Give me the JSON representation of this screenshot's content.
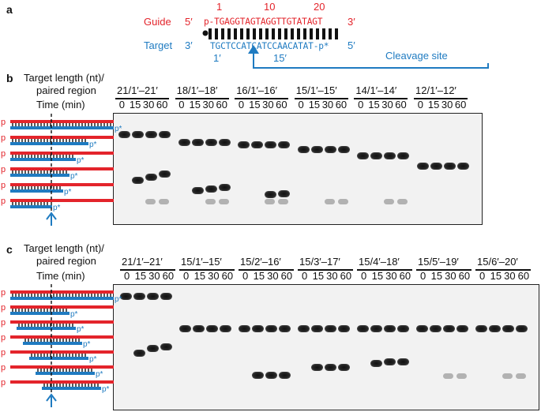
{
  "panel_a": {
    "letter": "a",
    "guide_label": "Guide",
    "target_label": "Target",
    "guide_5": "5′",
    "guide_3": "3′",
    "guide_seq": "p-TGAGGTAGTAGGTTGTATAGT",
    "target_3": "3′",
    "target_5": "5′",
    "target_seq": "TGCTCCATCATCCAACATAT-p*",
    "guide_pos_1": "1",
    "guide_pos_10": "10",
    "guide_pos_20": "20",
    "target_pos_1": "1′",
    "target_pos_15": "15′",
    "cleavage_label": "Cleavage site",
    "colors": {
      "guide": "#e3242b",
      "target": "#1f7bc1"
    }
  },
  "panel_b": {
    "letter": "b",
    "row_label_1": "Target length (nt)/",
    "row_label_2": "paired region",
    "time_label": "Time (min)",
    "groups": [
      {
        "label": "21/1′–21′",
        "times": [
          "0",
          "15",
          "30",
          "60"
        ]
      },
      {
        "label": "18/1′–18′",
        "times": [
          "0",
          "15",
          "30",
          "60"
        ]
      },
      {
        "label": "16/1′–16′",
        "times": [
          "0",
          "15",
          "30",
          "60"
        ]
      },
      {
        "label": "15/1′–15′",
        "times": [
          "0",
          "15",
          "30",
          "60"
        ]
      },
      {
        "label": "14/1′–14′",
        "times": [
          "0",
          "15",
          "30",
          "60"
        ]
      },
      {
        "label": "12/1′–12′",
        "times": [
          "0",
          "15",
          "30",
          "60"
        ]
      }
    ],
    "duplex_marker_p": "p",
    "duplex_marker_pstar": "p*"
  },
  "panel_c": {
    "letter": "c",
    "row_label_1": "Target length (nt)/",
    "row_label_2": "paired region",
    "time_label": "Time (min)",
    "groups": [
      {
        "label": "21/1′–21′",
        "times": [
          "0",
          "15",
          "30",
          "60"
        ]
      },
      {
        "label": "15/1′–15′",
        "times": [
          "0",
          "15",
          "30",
          "60"
        ]
      },
      {
        "label": "15/2′–16′",
        "times": [
          "0",
          "15",
          "30",
          "60"
        ]
      },
      {
        "label": "15/3′–17′",
        "times": [
          "0",
          "15",
          "30",
          "60"
        ]
      },
      {
        "label": "15/4′–18′",
        "times": [
          "0",
          "15",
          "30",
          "60"
        ]
      },
      {
        "label": "15/5′–19′",
        "times": [
          "0",
          "15",
          "30",
          "60"
        ]
      },
      {
        "label": "15/6′–20′",
        "times": [
          "0",
          "15",
          "30",
          "60"
        ]
      }
    ],
    "duplex_marker_p": "p",
    "duplex_marker_pstar": "p*"
  }
}
